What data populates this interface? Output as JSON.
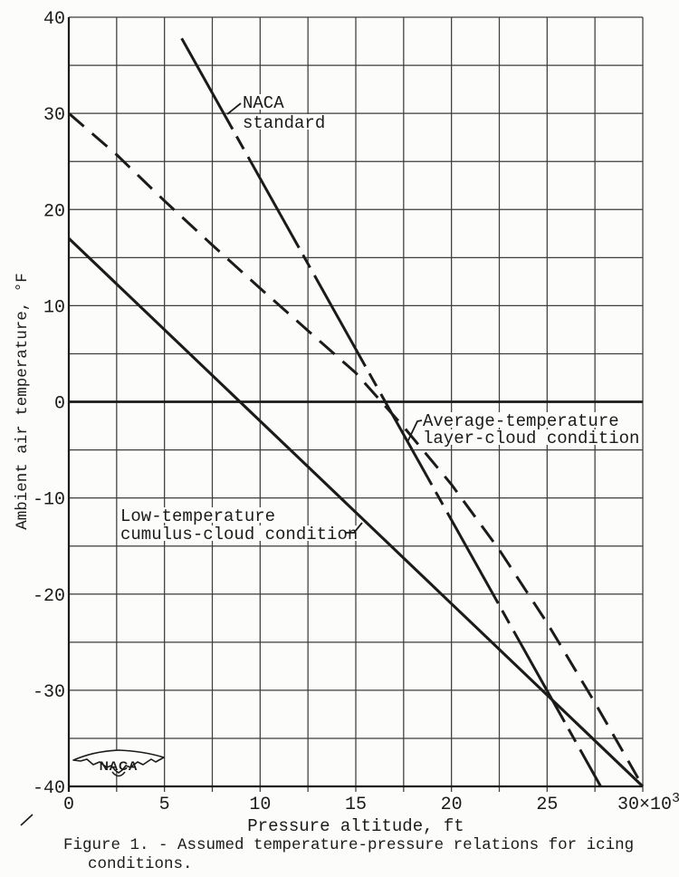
{
  "colors": {
    "ink": "#1b1b1b",
    "grid": "#3d3d3d",
    "paper": "#fcfcfb"
  },
  "figure": {
    "caption_line1": "Figure 1. - Assumed temperature-pressure relations for icing",
    "caption_line2": "conditions."
  },
  "axes": {
    "x_title": "Pressure altitude, ft",
    "y_title": "Ambient air temperature, °F",
    "x_ticks": [
      {
        "v": 0,
        "label": "0"
      },
      {
        "v": 5,
        "label": "5"
      },
      {
        "v": 10,
        "label": "10"
      },
      {
        "v": 15,
        "label": "15"
      },
      {
        "v": 20,
        "label": "20"
      },
      {
        "v": 25,
        "label": "25"
      },
      {
        "v": 30,
        "label": "30×10",
        "sup": "3"
      }
    ],
    "y_ticks": [
      {
        "v": 40,
        "label": "40"
      },
      {
        "v": 30,
        "label": "30"
      },
      {
        "v": 20,
        "label": "20"
      },
      {
        "v": 10,
        "label": "10"
      },
      {
        "v": 0,
        "label": "0"
      },
      {
        "v": -10,
        "label": "-10"
      },
      {
        "v": -20,
        "label": "-20"
      },
      {
        "v": -30,
        "label": "-30"
      },
      {
        "v": -40,
        "label": "-40"
      }
    ]
  },
  "annotations": {
    "naca_standard": {
      "lines": [
        "NACA",
        "standard"
      ]
    },
    "layer_cloud": {
      "lines": [
        "Average-temperature",
        "layer-cloud condition"
      ]
    },
    "cumulus": {
      "lines": [
        "Low-temperature",
        "cumulus-cloud condition"
      ]
    }
  },
  "logo": {
    "text": "NACA"
  },
  "chart_data": {
    "type": "line",
    "title": "",
    "xlabel": "Pressure altitude, ft",
    "ylabel": "Ambient air temperature, °F",
    "x_unit_suffix": "×10³",
    "xlim": [
      0,
      30
    ],
    "ylim": [
      -40,
      40
    ],
    "x_gridline_step": 2.5,
    "y_gridline_step": 5,
    "x_tick_step": 5,
    "y_tick_step": 10,
    "grid": true,
    "zero_line_emphasized": true,
    "legend": "inline-annotations",
    "series": [
      {
        "name": "NACA standard",
        "line_style": "long-dash-dot",
        "points": [
          [
            5.9,
            37.8
          ],
          [
            27.8,
            -40
          ]
        ]
      },
      {
        "name": "Average-temperature layer-cloud condition",
        "line_style": "dashed",
        "points": [
          [
            0,
            30
          ],
          [
            2.5,
            25.7
          ],
          [
            5,
            20.9
          ],
          [
            7.5,
            16.3
          ],
          [
            10,
            11.8
          ],
          [
            12.5,
            7.4
          ],
          [
            15,
            3.0
          ],
          [
            17.5,
            -2.6
          ],
          [
            20,
            -8.6
          ],
          [
            22.5,
            -15.4
          ],
          [
            25,
            -23.0
          ],
          [
            27.5,
            -31.3
          ],
          [
            30,
            -40
          ]
        ]
      },
      {
        "name": "Low-temperature cumulus-cloud condition",
        "line_style": "solid",
        "points": [
          [
            0,
            17
          ],
          [
            30,
            -40
          ]
        ]
      }
    ]
  }
}
